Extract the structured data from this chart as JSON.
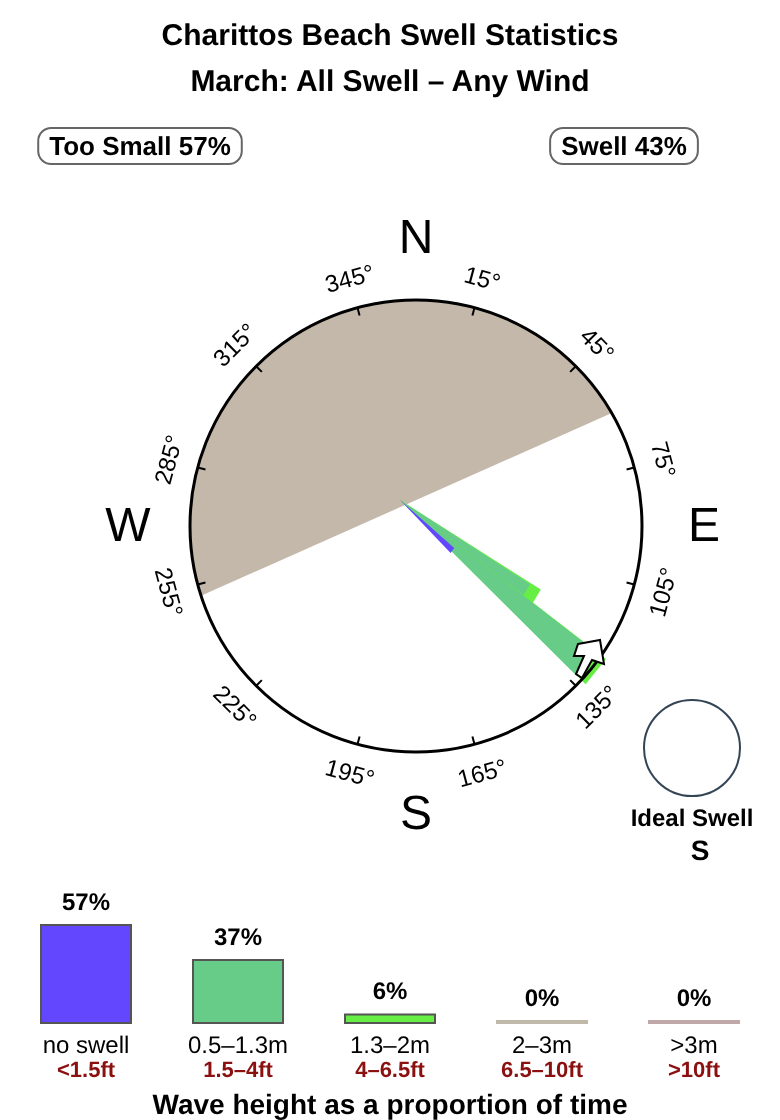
{
  "chart_data": [
    {
      "type": "other",
      "title": "Charittos Beach Swell Statistics",
      "subtitle": "March: All Swell – Any Wind",
      "annotations": [
        "Too Small 57%",
        "Swell 43%",
        "N",
        "E",
        "S",
        "W",
        "15°",
        "45°",
        "75°",
        "105°",
        "135°",
        "165°",
        "195°",
        "225°",
        "255°",
        "285°",
        "315°",
        "345°",
        "Ideal Swell",
        "S"
      ]
    },
    {
      "type": "bar",
      "xlabel": "Wave height as a proportion of time",
      "categories": [
        "no swell\n<1.5ft",
        "0.5–1.3m\n1.5–4ft",
        "1.3–2m\n4–6.5ft",
        "2–3m\n6.5–10ft",
        ">3m\n>10ft"
      ],
      "values": [
        57,
        37,
        6,
        0,
        0
      ],
      "value_labels": [
        "57%",
        "37%",
        "6%",
        "0%",
        "0%"
      ],
      "colors": [
        "#6347ff",
        "#66cc88",
        "#66ee44",
        "#c0b8a8",
        "#c0a8a8"
      ]
    }
  ]
}
